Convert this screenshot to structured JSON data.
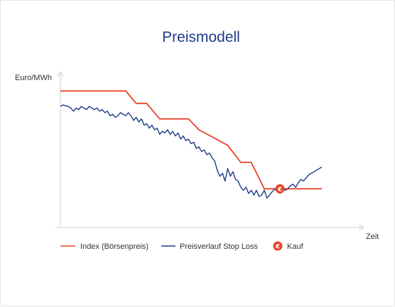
{
  "chart_data": {
    "type": "line",
    "title": "Preismodell",
    "ylabel": "Euro/MWh",
    "xlabel": "Zeit",
    "grid": false,
    "legend_position": "bottom",
    "colors": {
      "index": "#e8442a",
      "stoploss": "#1f3c88",
      "axis": "#cfcfcf",
      "kauf_marker": "#e8442a"
    },
    "series": [
      {
        "name": "Index (Börsenpreis)",
        "kind": "step",
        "x": [
          0,
          25,
          29,
          33,
          38,
          49,
          53,
          64,
          69,
          73,
          78,
          82,
          87,
          100
        ],
        "y": [
          88,
          88,
          80,
          80,
          70,
          70,
          63,
          53,
          42,
          42,
          25,
          25,
          25,
          25
        ]
      },
      {
        "name": "Preisverlauf Stop Loss",
        "kind": "line",
        "x": [
          0,
          1,
          3,
          4,
          5,
          6,
          7,
          8,
          9,
          10,
          11,
          12,
          13,
          14,
          15,
          16,
          17,
          18,
          19,
          20,
          21,
          22,
          23,
          24,
          25,
          26,
          27,
          28,
          29,
          30,
          31,
          32,
          33,
          34,
          35,
          36,
          37,
          38,
          39,
          40,
          41,
          42,
          43,
          44,
          45,
          46,
          47,
          48,
          49,
          50,
          51,
          52,
          53,
          54,
          55,
          56,
          57,
          58,
          59,
          60,
          61,
          62,
          63,
          64,
          65,
          66,
          67,
          68,
          69,
          70,
          71,
          72,
          73,
          74,
          75,
          76,
          77,
          78,
          79,
          80,
          81,
          82,
          83,
          84,
          85,
          86,
          87,
          88,
          89,
          90,
          91,
          92,
          93,
          94,
          95,
          96,
          97,
          98,
          99,
          100
        ],
        "y": [
          78,
          79,
          78,
          77,
          75,
          77,
          76,
          78,
          77,
          76,
          78,
          77,
          76,
          77,
          75,
          76,
          74,
          75,
          72,
          73,
          71,
          72,
          74,
          73,
          72,
          74,
          72,
          69,
          71,
          68,
          70,
          66,
          67,
          64,
          66,
          63,
          64,
          60,
          62,
          61,
          63,
          60,
          62,
          59,
          61,
          57,
          59,
          56,
          57,
          54,
          55,
          51,
          52,
          49,
          50,
          47,
          48,
          45,
          43,
          37,
          33,
          35,
          30,
          38,
          33,
          36,
          31,
          30,
          26,
          24,
          26,
          22,
          24,
          21,
          24,
          20,
          21,
          24,
          19,
          21,
          23,
          25,
          23,
          22,
          26,
          24,
          25,
          27,
          28,
          26,
          29,
          31,
          30,
          32,
          34,
          35,
          36,
          37,
          38,
          39
        ]
      }
    ],
    "kauf": {
      "label": "Kauf",
      "symbol": "€",
      "x": 84,
      "y": 25
    },
    "ylim": [
      0,
      100
    ],
    "xlim": [
      0,
      100
    ]
  }
}
